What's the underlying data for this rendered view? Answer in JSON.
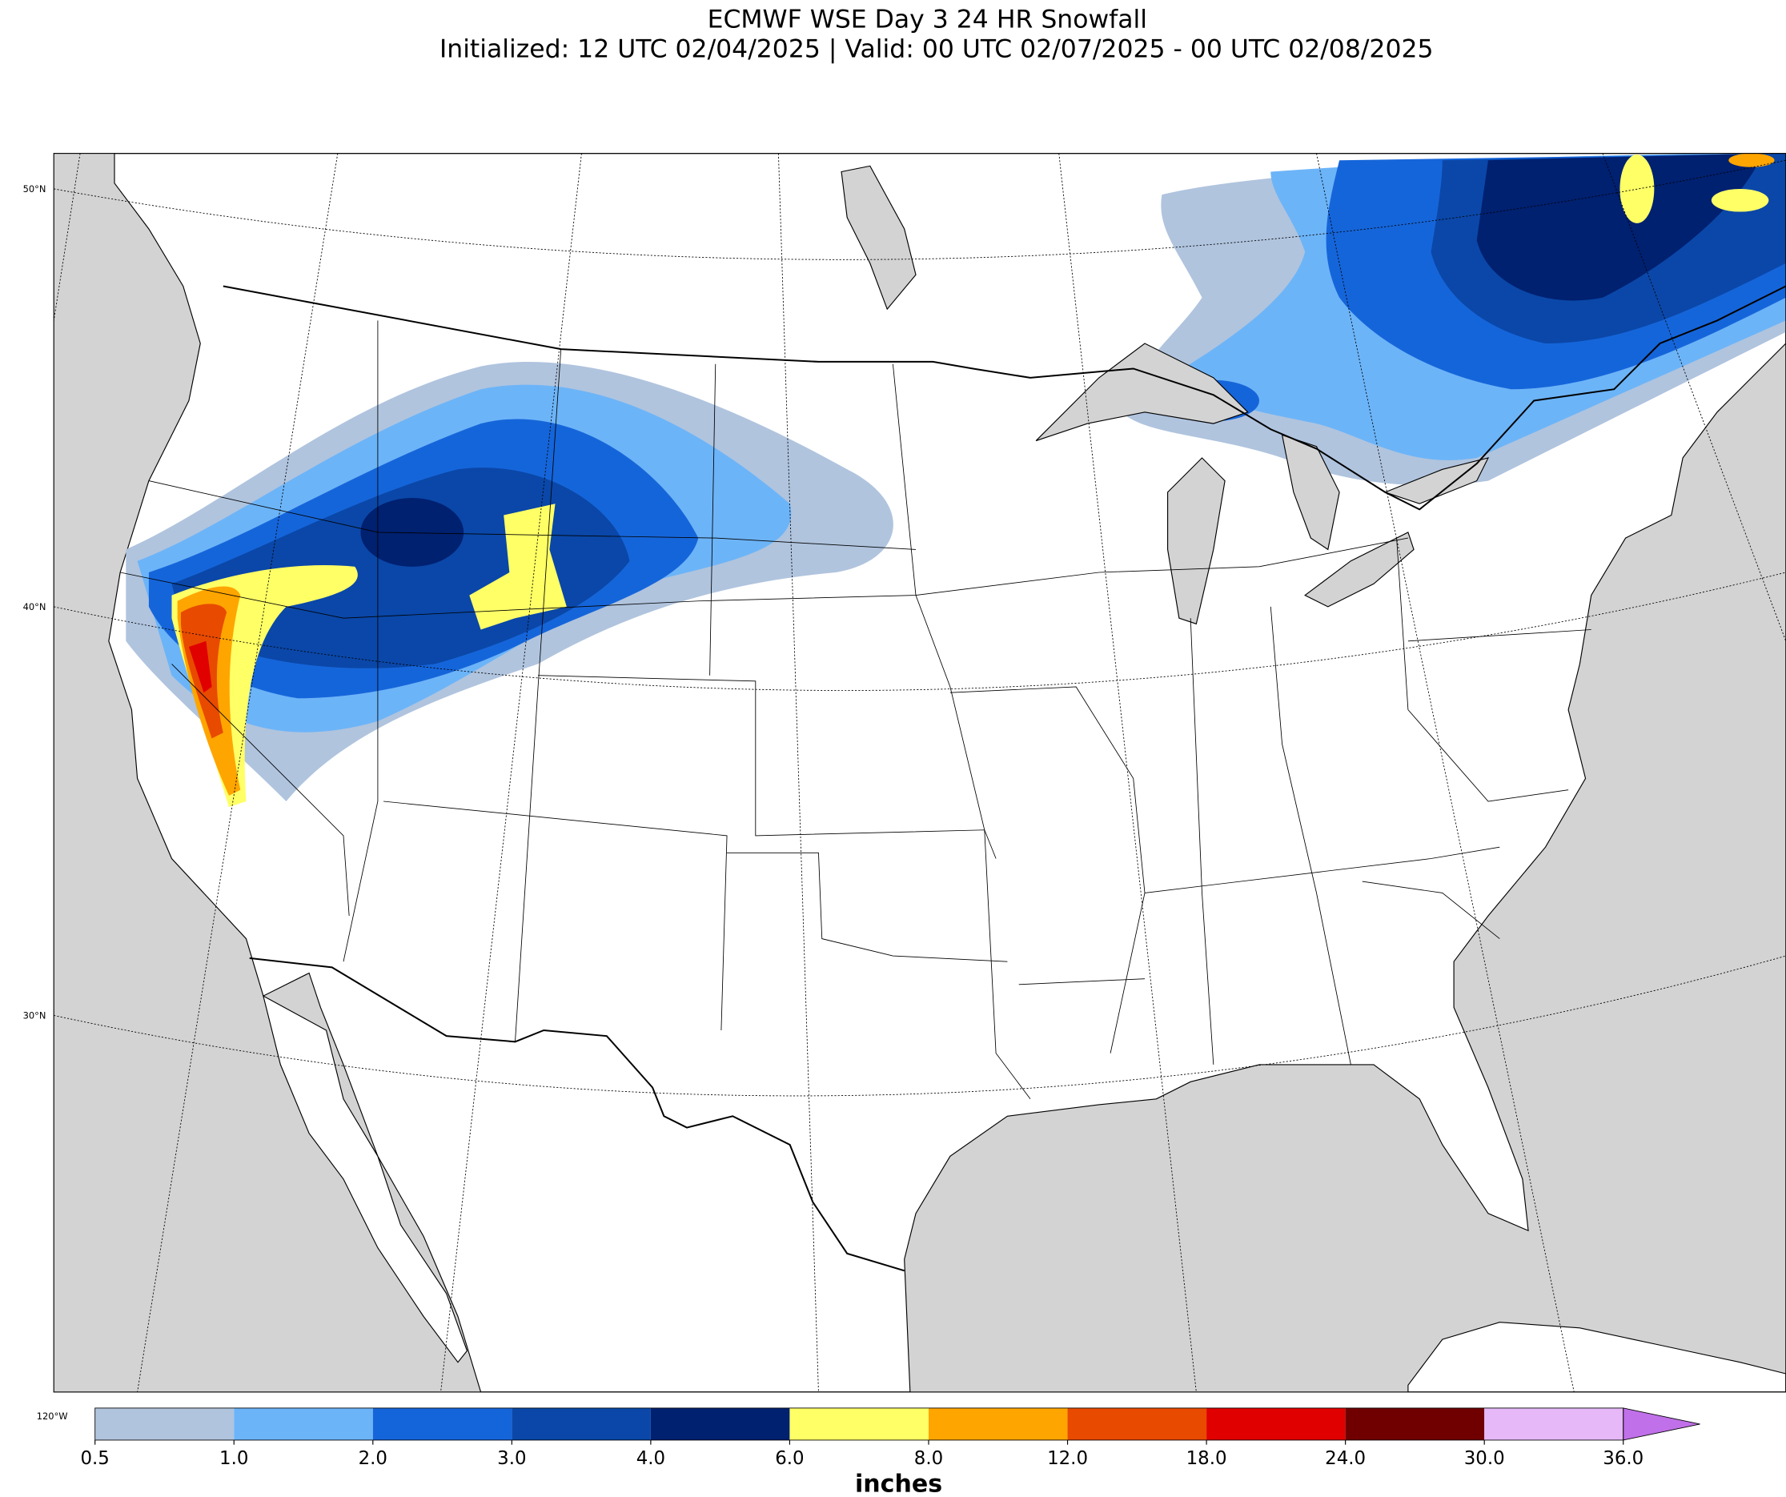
{
  "header": {
    "title": "ECMWF WSE Day 3 24 HR Snowfall",
    "subtitle": "Initialized: 12 UTC 02/04/2025 | Valid: 00 UTC 02/07/2025 - 00 UTC 02/08/2025"
  },
  "map": {
    "lat_labels": [
      "50°N",
      "40°N",
      "30°N"
    ],
    "lon_labels": [
      "120°W"
    ]
  },
  "colorbar": {
    "label": "inches",
    "ticks": [
      0.5,
      {
        "value": 1.0,
        "label": "1.0"
      },
      {
        "value": 2.0,
        "label": "2.0"
      },
      {
        "value": 3.0,
        "label": "3.0"
      },
      {
        "value": 4.0,
        "label": "4.0"
      },
      {
        "value": 6.0,
        "label": "6.0"
      },
      {
        "value": 8.0,
        "label": "8.0"
      },
      {
        "value": 12.0,
        "label": "12.0"
      },
      {
        "value": 18.0,
        "label": "18.0"
      },
      {
        "value": 24.0,
        "label": "24.0"
      },
      {
        "value": 30.0,
        "label": "30.0"
      },
      {
        "value": 36.0,
        "label": "36.0"
      }
    ],
    "colors": [
      "#b0c4de",
      "#6cb4f8",
      "#1565da",
      "#0a47a8",
      "#002070",
      "#ffff66",
      "#ffa500",
      "#e84a00",
      "#e00000",
      "#700000",
      "#e6b8f8",
      "#c070e8"
    ]
  }
}
